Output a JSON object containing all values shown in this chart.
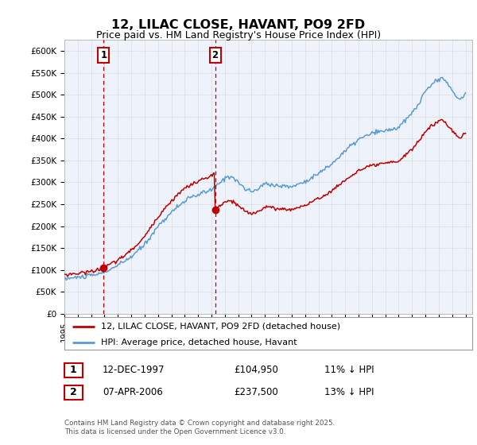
{
  "title": "12, LILAC CLOSE, HAVANT, PO9 2FD",
  "subtitle": "Price paid vs. HM Land Registry's House Price Index (HPI)",
  "ylim": [
    0,
    625000
  ],
  "yticks": [
    0,
    50000,
    100000,
    150000,
    200000,
    250000,
    300000,
    350000,
    400000,
    450000,
    500000,
    550000,
    600000
  ],
  "ytick_labels": [
    "£0",
    "£50K",
    "£100K",
    "£150K",
    "£200K",
    "£250K",
    "£300K",
    "£350K",
    "£400K",
    "£450K",
    "£500K",
    "£550K",
    "£600K"
  ],
  "hpi_color": "#5b9bd5",
  "price_color": "#c00000",
  "sale1_date": 1997.94,
  "sale1_price": 104950,
  "sale2_date": 2006.27,
  "sale2_price": 237500,
  "legend_label1": "12, LILAC CLOSE, HAVANT, PO9 2FD (detached house)",
  "legend_label2": "HPI: Average price, detached house, Havant",
  "table_row1": [
    "1",
    "12-DEC-1997",
    "£104,950",
    "11% ↓ HPI"
  ],
  "table_row2": [
    "2",
    "07-APR-2006",
    "£237,500",
    "13% ↓ HPI"
  ],
  "footnote": "Contains HM Land Registry data © Crown copyright and database right 2025.\nThis data is licensed under the Open Government Licence v3.0.",
  "bg_color": "#ffffff",
  "grid_color": "#dddddd",
  "plot_bg_color": "#eef3fb",
  "hpi_keypoints_x": [
    1995.0,
    1996.0,
    1997.0,
    1997.5,
    1998.0,
    1999.0,
    2000.0,
    2001.0,
    2002.0,
    2003.0,
    2004.0,
    2005.0,
    2006.0,
    2006.5,
    2007.0,
    2007.5,
    2008.0,
    2008.5,
    2009.0,
    2009.5,
    2010.0,
    2011.0,
    2012.0,
    2013.0,
    2014.0,
    2015.0,
    2016.0,
    2017.0,
    2018.0,
    2019.0,
    2020.0,
    2021.0,
    2021.5,
    2022.0,
    2022.5,
    2023.0,
    2023.3,
    2023.6,
    2024.0,
    2024.3,
    2024.6,
    2025.0
  ],
  "hpi_keypoints_y": [
    80000,
    83000,
    87000,
    90000,
    95000,
    110000,
    130000,
    158000,
    200000,
    232000,
    258000,
    272000,
    283000,
    295000,
    310000,
    315000,
    300000,
    285000,
    278000,
    285000,
    298000,
    292000,
    290000,
    302000,
    320000,
    342000,
    372000,
    398000,
    412000,
    418000,
    425000,
    458000,
    480000,
    508000,
    525000,
    535000,
    540000,
    528000,
    510000,
    495000,
    488000,
    505000
  ]
}
